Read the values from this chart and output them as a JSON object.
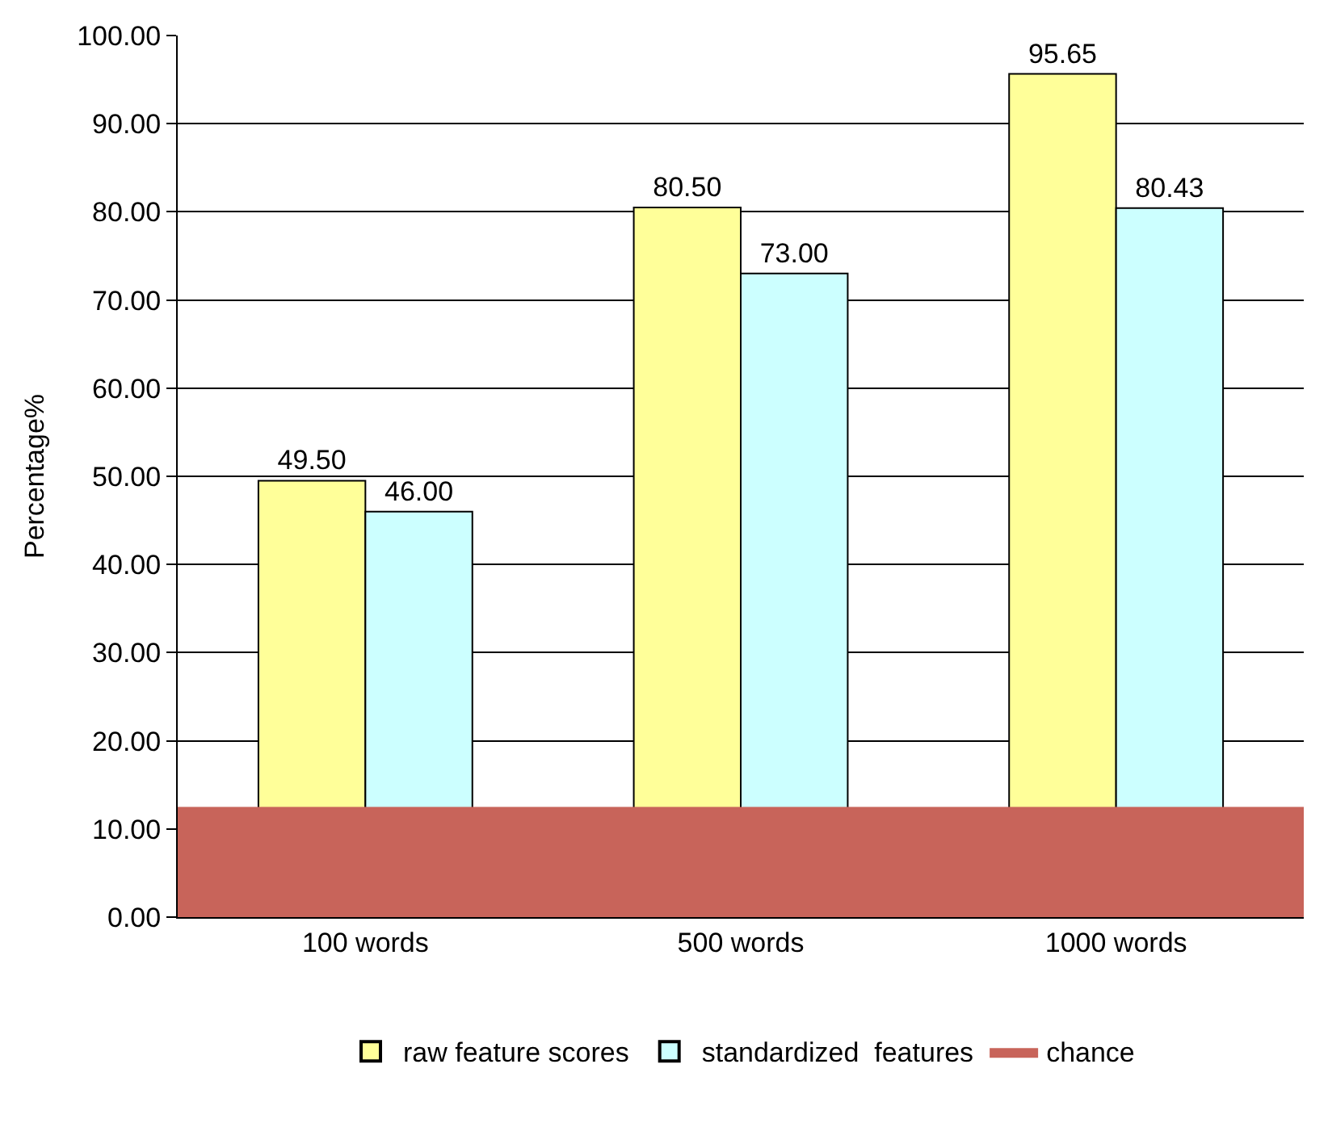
{
  "chart_data": {
    "type": "bar",
    "ylabel": "Percentage%",
    "categories": [
      "100 words",
      "500 words",
      "1000 words"
    ],
    "series": [
      {
        "name": "raw feature scores",
        "color": "#ffff99",
        "values": [
          49.5,
          80.5,
          95.65
        ]
      },
      {
        "name": "standardized  features",
        "color": "#ccffff",
        "values": [
          46.0,
          73.0,
          80.43
        ]
      }
    ],
    "value_labels": [
      [
        "49.50",
        "80.50",
        "95.65"
      ],
      [
        "46.00",
        "73.00",
        "80.43"
      ]
    ],
    "bands": [
      {
        "axis": "y",
        "from": 0,
        "to": 12.5,
        "label": "chance",
        "color": "#c8645a"
      }
    ],
    "ylim": [
      0,
      100
    ],
    "yticks": [
      {
        "value": 0,
        "label": "0.00"
      },
      {
        "value": 10,
        "label": "10.00"
      },
      {
        "value": 20,
        "label": "20.00"
      },
      {
        "value": 30,
        "label": "30.00"
      },
      {
        "value": 40,
        "label": "40.00"
      },
      {
        "value": 50,
        "label": "50.00"
      },
      {
        "value": 60,
        "label": "60.00"
      },
      {
        "value": 70,
        "label": "70.00"
      },
      {
        "value": 80,
        "label": "80.00"
      },
      {
        "value": 90,
        "label": "90.00"
      },
      {
        "value": 100,
        "label": "100.00"
      }
    ],
    "grid": "y",
    "legend": "bottom"
  }
}
